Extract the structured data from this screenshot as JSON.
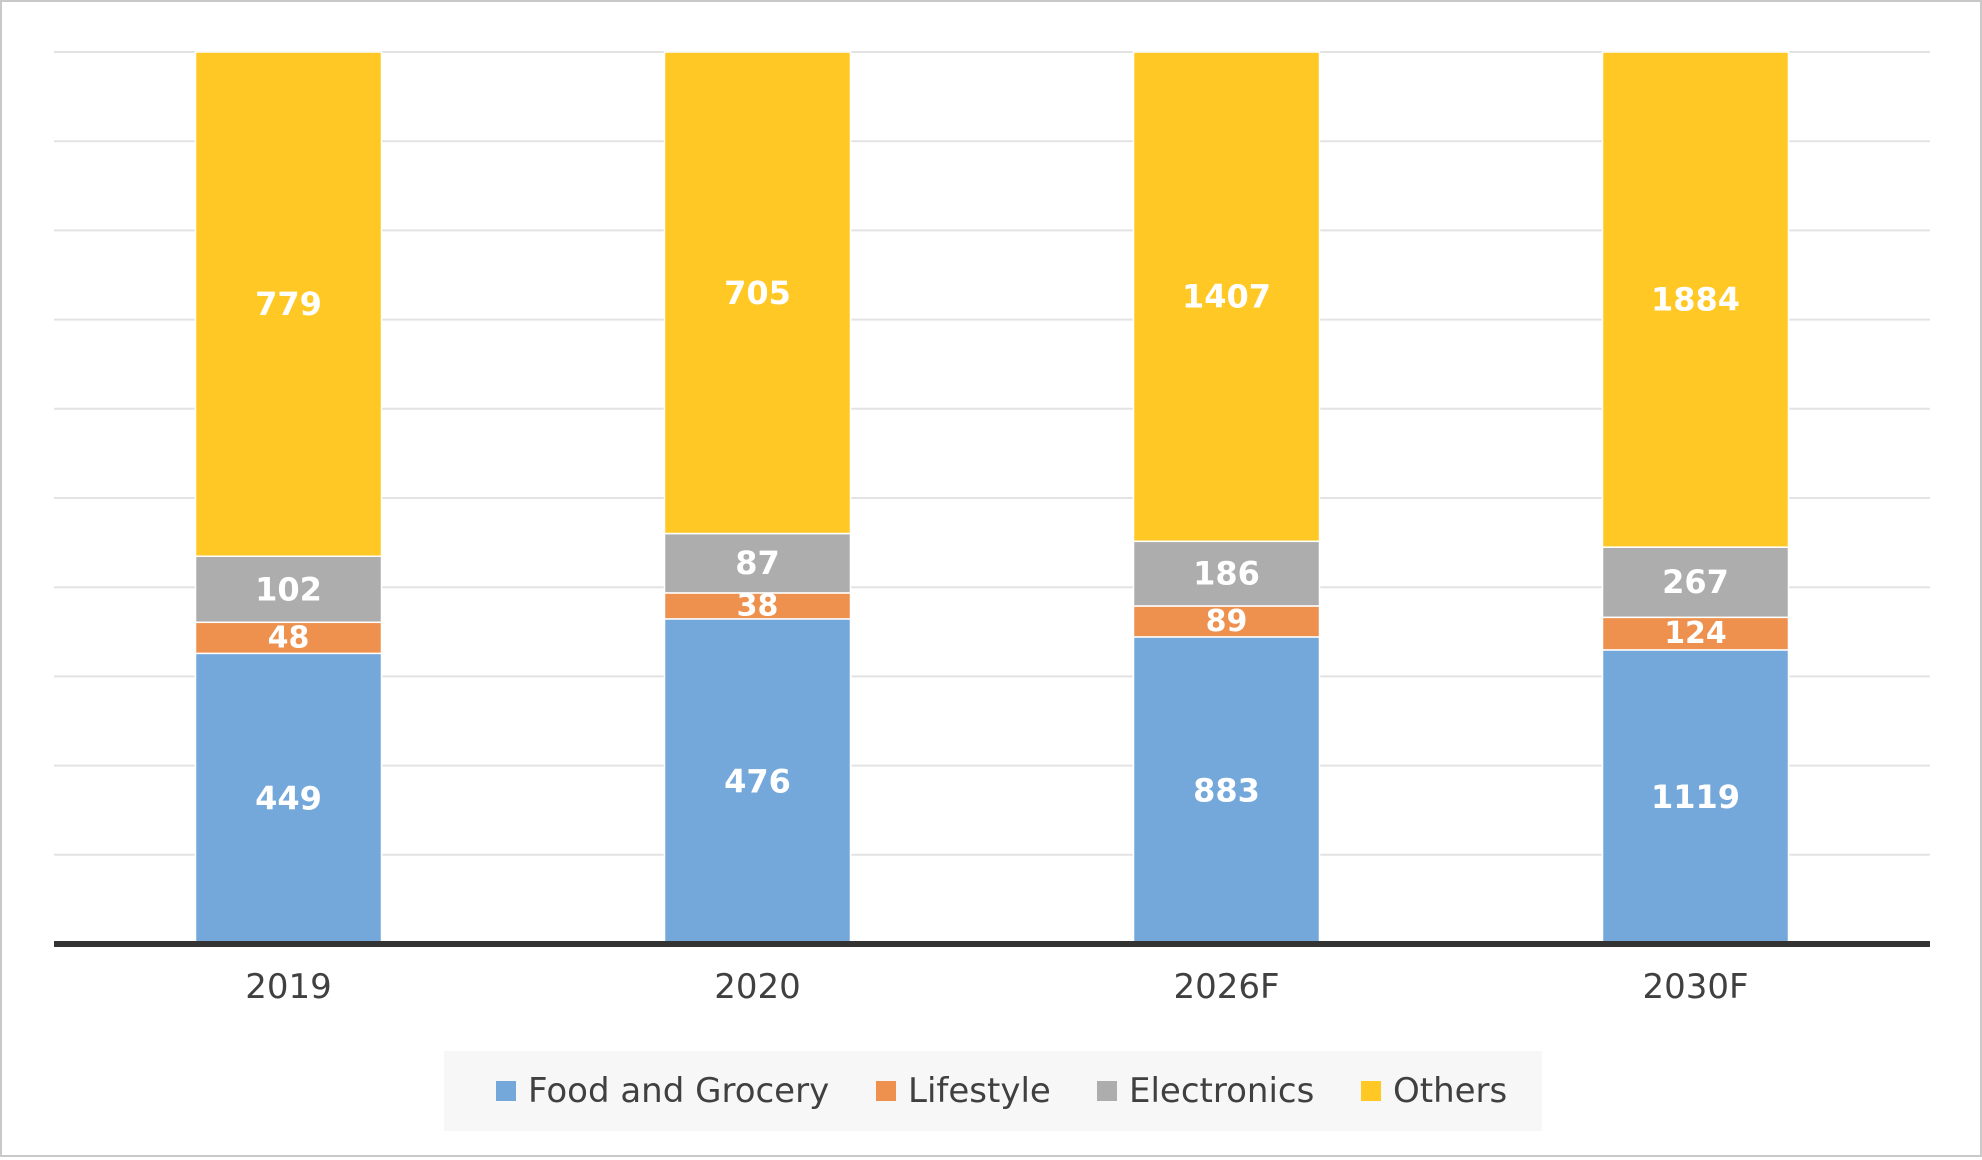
{
  "chart_data": {
    "type": "bar",
    "stacked": "100%",
    "title": "",
    "xlabel": "",
    "ylabel": "",
    "categories": [
      "2019",
      "2020",
      "2026F",
      "2030F"
    ],
    "series": [
      {
        "name": "Food and Grocery",
        "values": [
          449,
          476,
          883,
          1119
        ],
        "color": "#74A8DA"
      },
      {
        "name": "Lifestyle",
        "values": [
          48,
          38,
          89,
          124
        ],
        "color": "#EE914F"
      },
      {
        "name": "Electronics",
        "values": [
          102,
          87,
          186,
          267
        ],
        "color": "#ADADAD"
      },
      {
        "name": "Others",
        "values": [
          779,
          705,
          1407,
          1884
        ],
        "color": "#FFC824"
      }
    ],
    "grid": true,
    "y_axis_labels_shown": false,
    "legend_position": "bottom",
    "data_label_color": "#ffffff"
  }
}
